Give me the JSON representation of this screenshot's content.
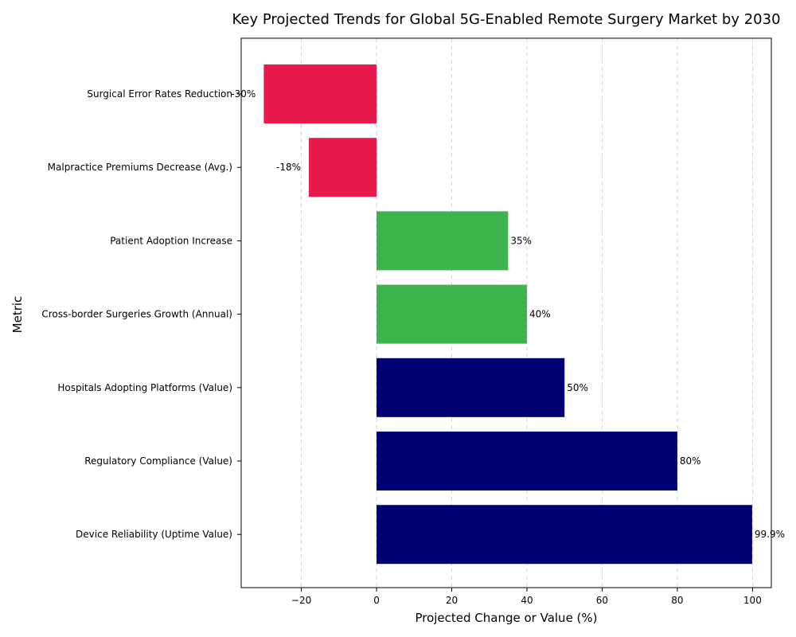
{
  "chart_data": {
    "type": "bar",
    "orientation": "horizontal",
    "title": "Key Projected Trends for Global 5G-Enabled Remote Surgery Market by 2030",
    "xlabel": "Projected Change or Value (%)",
    "ylabel": "Metric",
    "xlim": [
      -36,
      105
    ],
    "xticks": [
      -20,
      0,
      20,
      40,
      60,
      80,
      100
    ],
    "xtick_labels": [
      "−20",
      "0",
      "20",
      "40",
      "60",
      "80",
      "100"
    ],
    "grid": "vertical dashed",
    "categories": [
      "Surgical Error Rates Reduction",
      "Malpractice Premiums Decrease (Avg.)",
      "Patient Adoption Increase",
      "Cross-border Surgeries Growth (Annual)",
      "Hospitals Adopting Platforms (Value)",
      "Regulatory Compliance (Value)",
      "Device Reliability (Uptime Value)"
    ],
    "values": [
      -30,
      -18,
      35,
      40,
      50,
      80,
      99.9
    ],
    "data_labels": [
      "-30%",
      "-18%",
      "35%",
      "40%",
      "50%",
      "80%",
      "99.9%"
    ],
    "colors": [
      "#e8194b",
      "#e8194b",
      "#3cb44b",
      "#3cb44b",
      "#000075",
      "#000075",
      "#000075"
    ]
  }
}
